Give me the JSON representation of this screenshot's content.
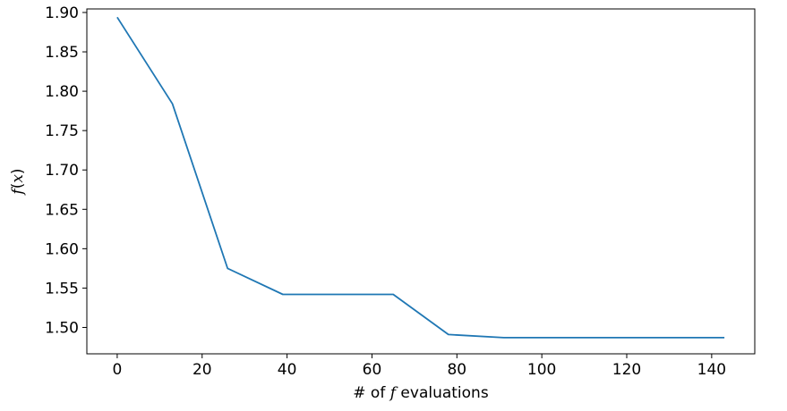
{
  "chart_data": {
    "type": "line",
    "xlabel": {
      "prefix": "# of ",
      "var": "f",
      "suffix": " evaluations"
    },
    "ylabel": {
      "var": "f",
      "arg": "x"
    },
    "xlim": [
      -7.15,
      150.15
    ],
    "ylim": [
      1.4665,
      1.9045
    ],
    "xticks": [
      0,
      20,
      40,
      60,
      80,
      100,
      120,
      140
    ],
    "yticks": [
      1.5,
      1.55,
      1.6,
      1.65,
      1.7,
      1.75,
      1.8,
      1.85,
      1.9
    ],
    "xtick_labels": [
      "0",
      "20",
      "40",
      "60",
      "80",
      "100",
      "120",
      "140"
    ],
    "ytick_labels": [
      "1.50",
      "1.55",
      "1.60",
      "1.65",
      "1.70",
      "1.75",
      "1.80",
      "1.85",
      "1.90"
    ],
    "grid": false,
    "series": [
      {
        "color": "#1f77b4",
        "x": [
          0,
          13,
          26,
          39,
          52,
          65,
          78,
          91,
          104,
          117,
          130,
          143
        ],
        "y": [
          1.894,
          1.784,
          1.575,
          1.542,
          1.542,
          1.542,
          1.491,
          1.487,
          1.487,
          1.487,
          1.487,
          1.487
        ]
      }
    ]
  }
}
